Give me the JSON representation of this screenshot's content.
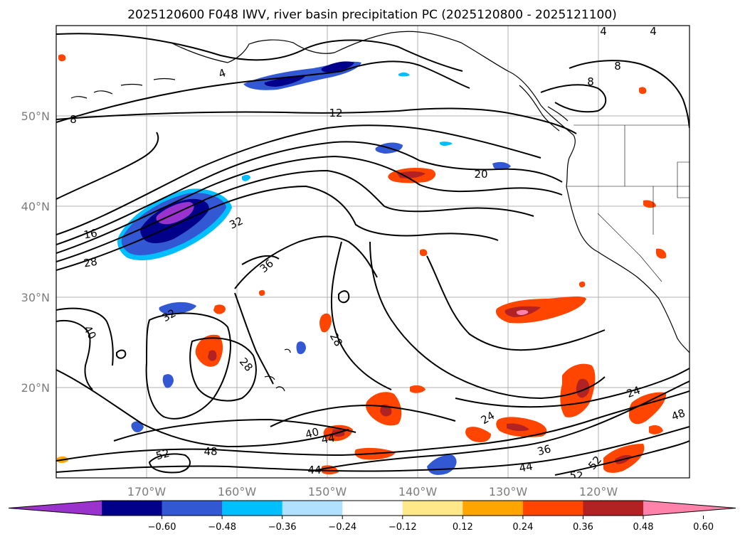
{
  "title": "2025120600 F048 IWV, river basin precipitation PC (2025120800 - 2025121100)",
  "map": {
    "lat_labels": [
      "50°N",
      "40°N",
      "30°N",
      "20°N"
    ],
    "lon_labels": [
      "170°W",
      "160°W",
      "150°W",
      "140°W",
      "130°W",
      "120°W"
    ],
    "grid": true,
    "iwv_contour_labels": [
      "4",
      "4",
      "4",
      "8",
      "8",
      "8",
      "12",
      "16",
      "20",
      "24",
      "24",
      "28",
      "28",
      "28",
      "32",
      "32",
      "36",
      "36",
      "40",
      "40",
      "44",
      "44",
      "44",
      "48",
      "48",
      "52",
      "52",
      "52"
    ]
  },
  "colorbar": {
    "ticks": [
      "−0.60",
      "−0.48",
      "−0.36",
      "−0.24",
      "−0.12",
      "0.12",
      "0.24",
      "0.36",
      "0.48",
      "0.60"
    ],
    "colors": [
      "#9a32cd",
      "#00008b",
      "#3358d4",
      "#00bfff",
      "#b0e2ff",
      "#ffffff",
      "#ffe88a",
      "#ffa500",
      "#ff4500",
      "#b22222",
      "#ff82ab"
    ],
    "extend": "both"
  },
  "chart_data": {
    "type": "map",
    "title": "2025120600 F048 IWV, river basin precipitation PC (2025120800 - 2025121100)",
    "lon_range": [
      "180°W",
      "110°W"
    ],
    "lat_range": [
      "10°N",
      "60°N"
    ],
    "contour_variable": "IWV",
    "contour_levels": [
      4,
      8,
      12,
      16,
      20,
      24,
      28,
      32,
      36,
      40,
      44,
      48,
      52
    ],
    "shaded_variable": "river basin precipitation PC",
    "color_levels": [
      -0.6,
      -0.48,
      -0.36,
      -0.24,
      -0.12,
      0.12,
      0.24,
      0.36,
      0.48,
      0.6
    ]
  }
}
